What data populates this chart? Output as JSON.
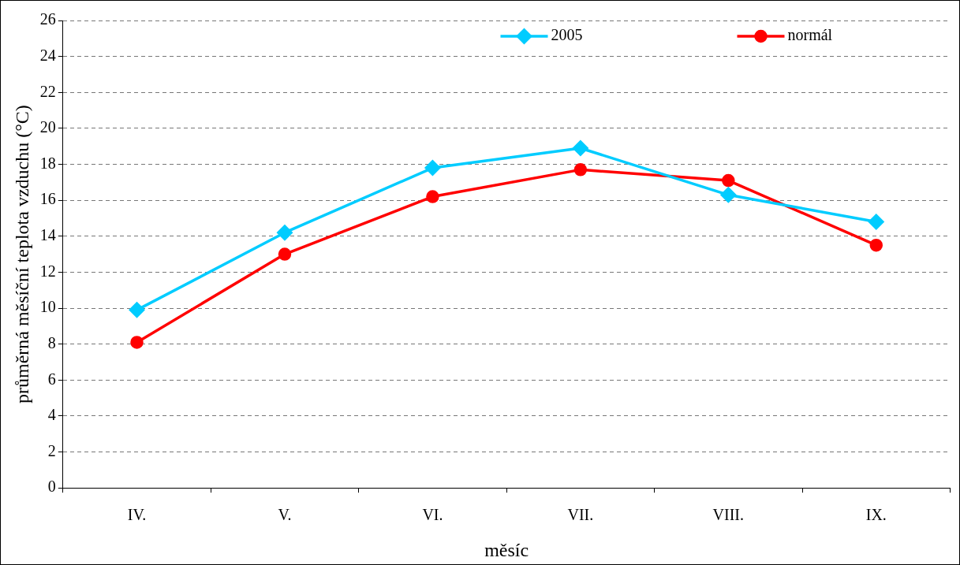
{
  "chart_data": {
    "type": "line",
    "xlabel": "měsíc",
    "ylabel": "průměrná měsíční teplota vzduchu (°C)",
    "categories": [
      "IV.",
      "V.",
      "VI.",
      "VII.",
      "VIII.",
      "IX."
    ],
    "series": [
      {
        "name": "2005",
        "color": "#00ccff",
        "marker": "diamond",
        "values": [
          9.9,
          14.2,
          17.8,
          18.9,
          16.3,
          14.8
        ]
      },
      {
        "name": "normál",
        "color": "#ff0000",
        "marker": "circle",
        "values": [
          8.1,
          13.0,
          16.2,
          17.7,
          17.1,
          13.5
        ]
      }
    ],
    "ylim": [
      0,
      26
    ],
    "yticks": [
      0,
      2,
      4,
      6,
      8,
      10,
      12,
      14,
      16,
      18,
      20,
      22,
      24,
      26
    ],
    "grid": "y",
    "legend": "top right",
    "line_style": "solid"
  }
}
